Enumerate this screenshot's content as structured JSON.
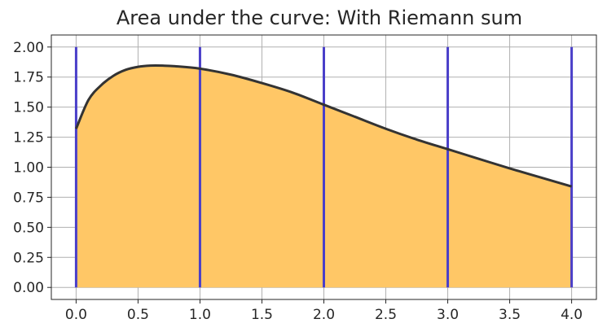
{
  "chart_data": {
    "type": "area",
    "title": "Area under the curve: With Riemann sum",
    "xlabel": "",
    "ylabel": "",
    "xlim": [
      -0.2,
      4.2
    ],
    "ylim": [
      -0.1,
      2.1
    ],
    "grid": true,
    "x_ticks": [
      0.0,
      0.5,
      1.0,
      1.5,
      2.0,
      2.5,
      3.0,
      3.5,
      4.0
    ],
    "x_tick_labels": [
      "0.0",
      "0.5",
      "1.0",
      "1.5",
      "2.0",
      "2.5",
      "3.0",
      "3.5",
      "4.0"
    ],
    "y_ticks": [
      0.0,
      0.25,
      0.5,
      0.75,
      1.0,
      1.25,
      1.5,
      1.75,
      2.0
    ],
    "y_tick_labels": [
      "0.00",
      "0.25",
      "0.50",
      "0.75",
      "1.00",
      "1.25",
      "1.50",
      "1.75",
      "2.00"
    ],
    "curve": {
      "x": [
        0.0,
        0.1,
        0.2,
        0.3,
        0.4,
        0.5,
        0.6,
        0.7,
        0.8,
        1.0,
        1.25,
        1.5,
        1.75,
        2.0,
        2.25,
        2.5,
        2.75,
        3.0,
        3.25,
        3.5,
        3.75,
        4.0
      ],
      "y": [
        1.32,
        1.56,
        1.68,
        1.76,
        1.81,
        1.835,
        1.845,
        1.845,
        1.84,
        1.82,
        1.77,
        1.7,
        1.62,
        1.52,
        1.42,
        1.32,
        1.23,
        1.15,
        1.07,
        0.99,
        0.915,
        0.84
      ],
      "color": "#333333"
    },
    "fill_color": "#ffc766",
    "riemann_lines": {
      "x": [
        0.0,
        1.0,
        2.0,
        3.0,
        4.0
      ],
      "top": 2.0,
      "color": "#4a3fc9"
    },
    "grid_color": "#b0b0b0"
  }
}
